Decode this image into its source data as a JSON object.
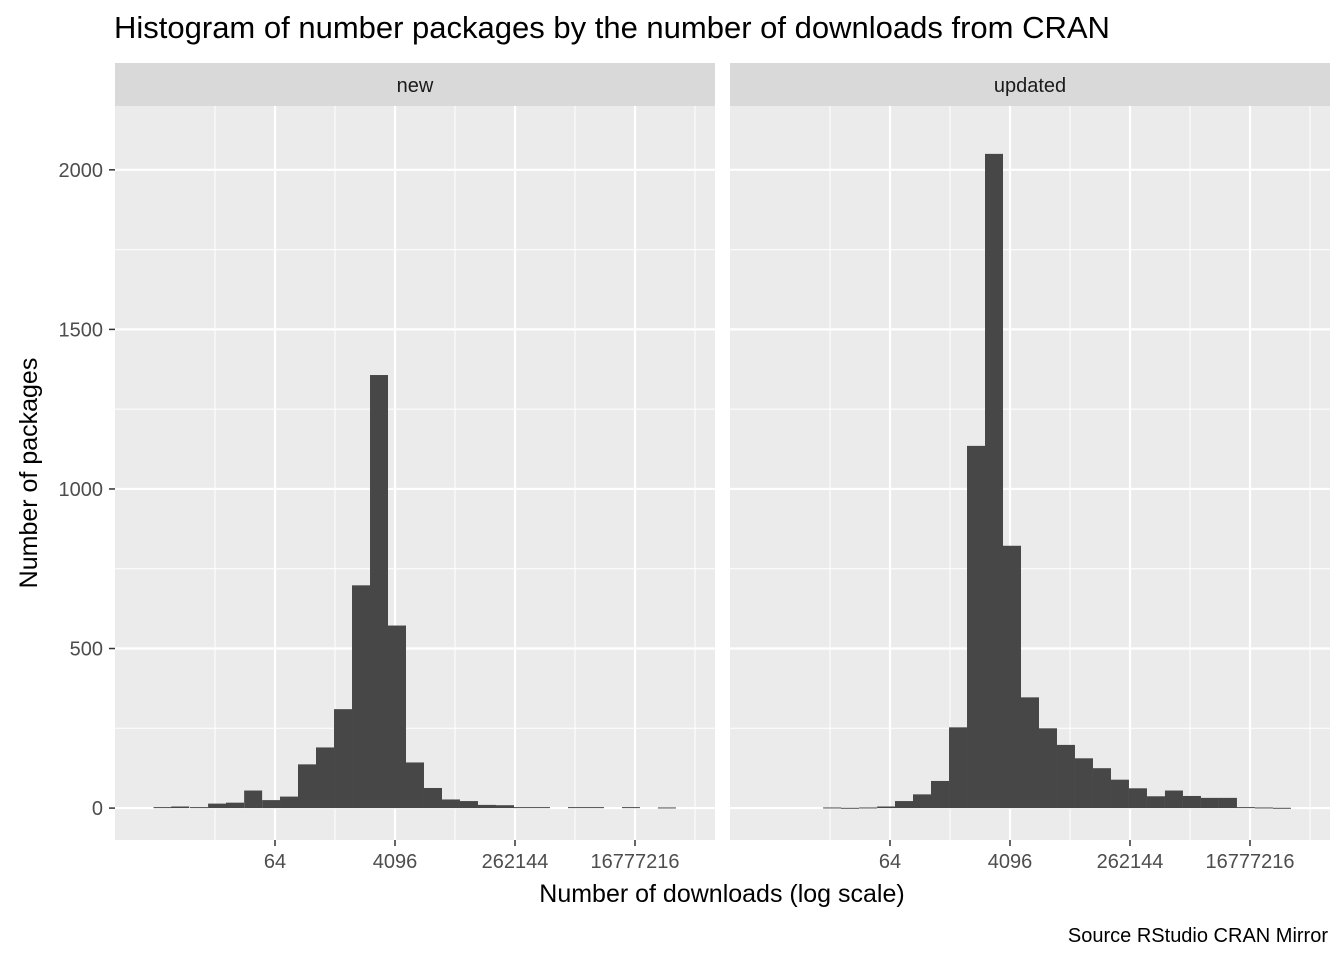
{
  "chart_data": {
    "type": "bar",
    "title": "Histogram of number packages by the number of downloads from CRAN",
    "xlabel": "Number of downloads (log scale)",
    "ylabel": "Number of packages",
    "caption": "Source RStudio CRAN Mirror",
    "x_scale": "log",
    "x_log_base": 2,
    "xlim": [
      0.25,
      268435456
    ],
    "ylim": [
      -100,
      2200
    ],
    "x_ticks": [
      64,
      4096,
      262144,
      16777216
    ],
    "x_tick_labels": [
      "64",
      "4096",
      "262144",
      "16777216"
    ],
    "y_ticks": [
      0,
      500,
      1000,
      1500,
      2000
    ],
    "y_tick_labels": [
      "0",
      "500",
      "1000",
      "1500",
      "2000"
    ],
    "grid": true,
    "bar_color": "#474747",
    "bin_width_log2": 0.9,
    "facets": [
      {
        "label": "new",
        "bins": [
          {
            "x": 1.3,
            "y": 3
          },
          {
            "x": 2.4,
            "y": 5
          },
          {
            "x": 4.6,
            "y": 3
          },
          {
            "x": 8.6,
            "y": 14
          },
          {
            "x": 16,
            "y": 17
          },
          {
            "x": 30,
            "y": 55
          },
          {
            "x": 56,
            "y": 25
          },
          {
            "x": 104,
            "y": 36
          },
          {
            "x": 194,
            "y": 137
          },
          {
            "x": 362,
            "y": 190
          },
          {
            "x": 676,
            "y": 310
          },
          {
            "x": 1261,
            "y": 698
          },
          {
            "x": 2353,
            "y": 1357
          },
          {
            "x": 4390,
            "y": 572
          },
          {
            "x": 8190,
            "y": 143
          },
          {
            "x": 15281,
            "y": 63
          },
          {
            "x": 28510,
            "y": 27
          },
          {
            "x": 53194,
            "y": 22
          },
          {
            "x": 99247,
            "y": 10
          },
          {
            "x": 185171,
            "y": 9
          },
          {
            "x": 345487,
            "y": 3
          },
          {
            "x": 644600,
            "y": 3
          },
          {
            "x": 2243916,
            "y": 3
          },
          {
            "x": 4186611,
            "y": 3
          },
          {
            "x": 14574158,
            "y": 3
          },
          {
            "x": 50733894,
            "y": 2
          }
        ]
      },
      {
        "label": "updated",
        "bins": [
          {
            "x": 8.6,
            "y": 2
          },
          {
            "x": 16,
            "y": 1
          },
          {
            "x": 30,
            "y": 2
          },
          {
            "x": 56,
            "y": 5
          },
          {
            "x": 104,
            "y": 22
          },
          {
            "x": 194,
            "y": 43
          },
          {
            "x": 362,
            "y": 85
          },
          {
            "x": 676,
            "y": 253
          },
          {
            "x": 1261,
            "y": 1135
          },
          {
            "x": 2353,
            "y": 2050
          },
          {
            "x": 4390,
            "y": 822
          },
          {
            "x": 8190,
            "y": 347
          },
          {
            "x": 15281,
            "y": 250
          },
          {
            "x": 28510,
            "y": 198
          },
          {
            "x": 53194,
            "y": 156
          },
          {
            "x": 99247,
            "y": 125
          },
          {
            "x": 185171,
            "y": 89
          },
          {
            "x": 345487,
            "y": 62
          },
          {
            "x": 644600,
            "y": 37
          },
          {
            "x": 1202672,
            "y": 55
          },
          {
            "x": 2243916,
            "y": 38
          },
          {
            "x": 4186611,
            "y": 32
          },
          {
            "x": 7811077,
            "y": 32
          },
          {
            "x": 14574158,
            "y": 3
          },
          {
            "x": 27191736,
            "y": 2
          },
          {
            "x": 50733894,
            "y": 1
          }
        ]
      }
    ]
  }
}
